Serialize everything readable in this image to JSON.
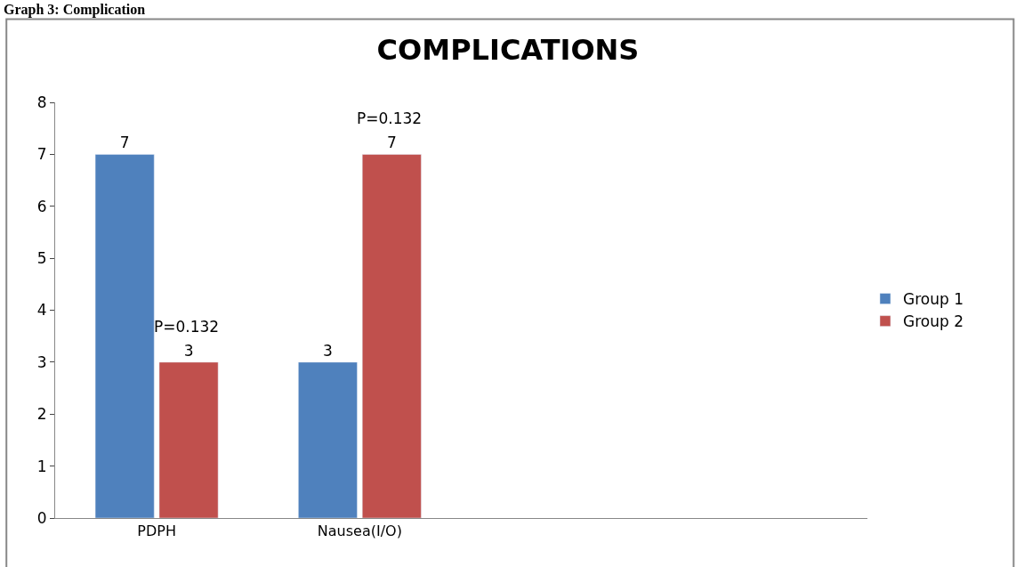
{
  "chart_data": {
    "type": "bar",
    "title": "COMPLICATIONS",
    "categories": [
      "PDPH",
      "Nausea(I/O)"
    ],
    "series": [
      {
        "name": "Group 1",
        "color": "#4f81bd",
        "values": [
          7,
          3
        ]
      },
      {
        "name": "Group 2",
        "color": "#c0504d",
        "values": [
          3,
          7
        ]
      }
    ],
    "ylim": [
      0,
      8
    ],
    "yticks": [
      0,
      1,
      2,
      3,
      4,
      5,
      6,
      7,
      8
    ],
    "data_labels": true,
    "legend": "right",
    "annotations": [
      {
        "text": "P=0.132",
        "x": "PDPH",
        "y": 3
      },
      {
        "text": "P=0.132",
        "x": "Nausea(I/O)",
        "y": 7
      },
      "Graph 3: Complication"
    ]
  }
}
